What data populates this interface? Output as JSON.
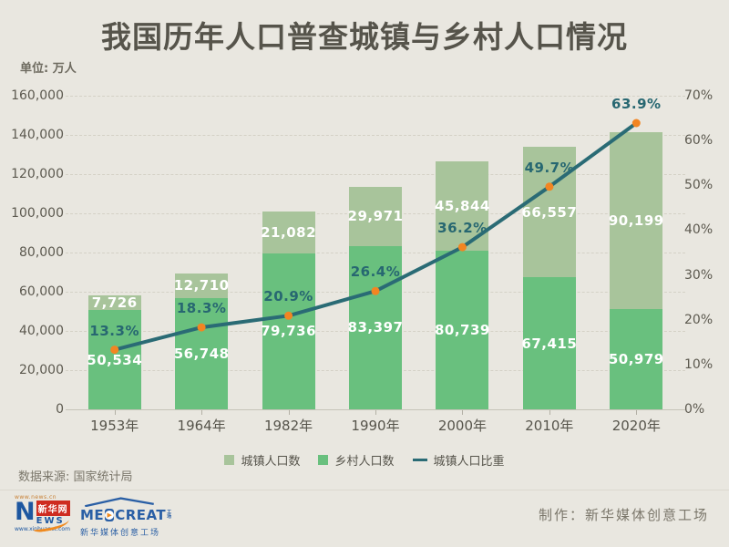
{
  "title": "我国历年人口普查城镇与乡村人口情况",
  "unit_label": "单位: 万人",
  "source_label": "数据来源: 国家统计局",
  "credit_label": "制作：新华媒体创意工场",
  "colors": {
    "background": "#e9e7e0",
    "urban_bar": "#a8c49b",
    "rural_bar": "#69c07e",
    "ratio_line": "#2a6b75",
    "ratio_dot": "#f28522",
    "ratio_label": "#276771",
    "bar_value_label": "#ffffff",
    "text": "#56544b",
    "muted_text": "#7a766a",
    "gridline": "#d4d1c6"
  },
  "legend": [
    {
      "label": "城镇人口数",
      "swatch": "square",
      "color": "#a8c49b"
    },
    {
      "label": "乡村人口数",
      "swatch": "square",
      "color": "#69c07e"
    },
    {
      "label": "城镇人口比重",
      "swatch": "line",
      "color": "#2a6b75"
    }
  ],
  "chart_data": {
    "type": "bar",
    "subtype": "stacked-bars-with-line-overlay",
    "title": "我国历年人口普查城镇与乡村人口情况",
    "unit": "万人",
    "categories": [
      "1953年",
      "1964年",
      "1982年",
      "1990年",
      "2000年",
      "2010年",
      "2020年"
    ],
    "series": [
      {
        "name": "城镇人口数",
        "type": "bar",
        "stack_position": "top",
        "color": "#a8c49b",
        "values": [
          7726,
          12710,
          21082,
          29971,
          45844,
          66557,
          90199
        ],
        "labels": [
          "7,726",
          "12,710",
          "21,082",
          "29,971",
          "45,844",
          "66,557",
          "90,199"
        ]
      },
      {
        "name": "乡村人口数",
        "type": "bar",
        "stack_position": "bottom",
        "color": "#69c07e",
        "values": [
          50534,
          56748,
          79736,
          83397,
          80739,
          67415,
          50979
        ],
        "labels": [
          "50,534",
          "56,748",
          "79,736",
          "83,397",
          "80,739",
          "67,415",
          "50,979"
        ]
      },
      {
        "name": "城镇人口比重",
        "type": "line",
        "axis": "right",
        "color": "#2a6b75",
        "dot_color": "#f28522",
        "values": [
          13.3,
          18.3,
          20.9,
          26.4,
          36.2,
          49.7,
          63.9
        ],
        "labels": [
          "13.3%",
          "18.3%",
          "20.9%",
          "26.4%",
          "36.2%",
          "49.7%",
          "63.9%"
        ]
      }
    ],
    "left_axis": {
      "min": 0,
      "max": 160000,
      "step": 20000,
      "tick_labels": [
        "0",
        "20,000",
        "40,000",
        "60,000",
        "80,000",
        "100,000",
        "120,000",
        "140,000",
        "160,000"
      ]
    },
    "right_axis": {
      "min": 0,
      "max": 70,
      "step": 10,
      "tick_labels": [
        "0%",
        "10%",
        "20%",
        "30%",
        "40%",
        "50%",
        "60%",
        "70%"
      ]
    },
    "grid": "dashed-horizontal",
    "legend_position": "bottom-center"
  },
  "footer": {
    "xinhua_logo": {
      "top_url": "www.news.cn",
      "letter_n": "N",
      "letters_ews": "EWS",
      "brand": "新华网",
      "bottom_url": "www.xinhuanet.com"
    },
    "medcreate_logo": {
      "wordmark_left": "ME",
      "play_glyph": "▶",
      "wordmark_right": "CREAT",
      "wordmark_suffix": "工场",
      "subtitle": "新华媒体创意工场"
    }
  }
}
